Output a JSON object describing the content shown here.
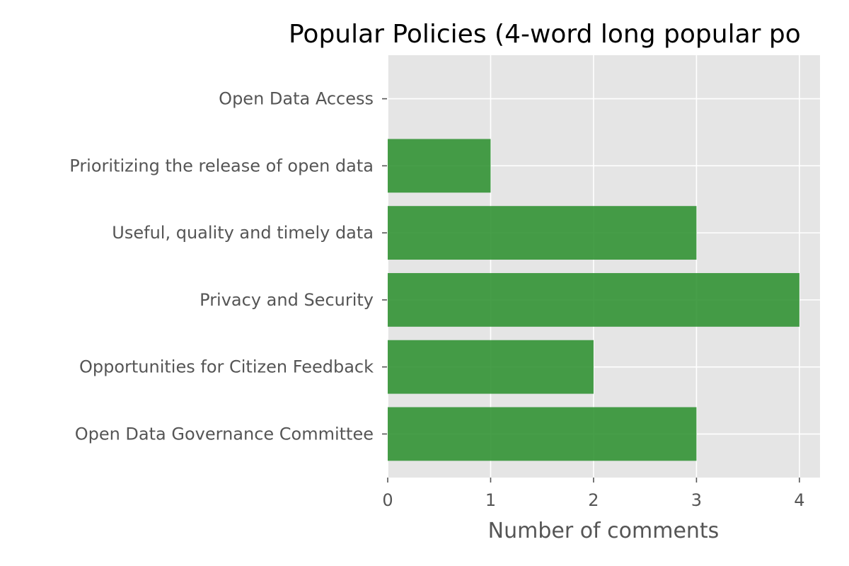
{
  "chart_data": {
    "type": "bar",
    "orientation": "horizontal",
    "title": "Popular Policies (4-word long popular po",
    "xlabel": "Number of comments",
    "ylabel": "",
    "categories": [
      "Open Data Access",
      "Prioritizing the release of open data",
      "Useful, quality and timely data",
      "Privacy and Security",
      "Opportunities for Citizen Feedback",
      "Open Data Governance Committee"
    ],
    "values": [
      0,
      1,
      3,
      4,
      2,
      3
    ],
    "xlim": [
      0,
      4.2
    ],
    "xticks": [
      "0",
      "1",
      "2",
      "3",
      "4"
    ],
    "grid": true,
    "colors": {
      "bar": "#2e9130",
      "plot_background": "#e5e5e5",
      "grid": "#ffffff",
      "tick_label": "#555555",
      "title": "#000000"
    }
  }
}
